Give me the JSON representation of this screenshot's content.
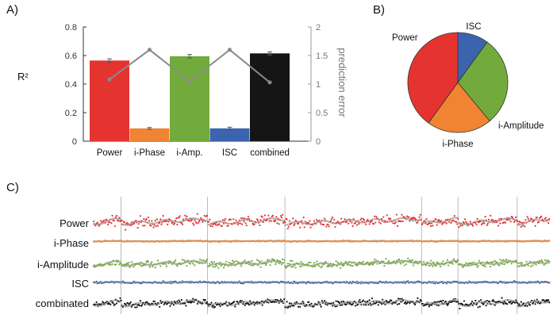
{
  "panels": {
    "a": "A)",
    "b": "B)",
    "c": "C)"
  },
  "chart_data": [
    {
      "type": "bar",
      "panel": "A",
      "categories": [
        "Power",
        "i-Phase",
        "i-Amp.",
        "ISC",
        "combined"
      ],
      "series": [
        {
          "values": [
            0.565,
            0.09,
            0.595,
            0.09,
            0.615
          ],
          "errors": [
            0.012,
            0.006,
            0.012,
            0.008,
            0.011
          ],
          "colors": [
            "#e53430",
            "#f08433",
            "#72ab3b",
            "#3c64ae",
            "#151515"
          ]
        },
        {
          "type": "line",
          "axis": "right",
          "values": [
            1.08,
            1.6,
            1.05,
            1.6,
            1.03
          ],
          "color": "#8a8a8a"
        }
      ],
      "ylabel": "R²",
      "ylim": [
        0,
        0.8
      ],
      "yticks": [
        "0",
        "0.2",
        "0.4",
        "0.6",
        "0.8"
      ],
      "y2label": "prediction error",
      "y2lim": [
        0,
        2
      ],
      "y2ticks": [
        "0",
        "0.5",
        "1",
        "1.5",
        "2"
      ]
    },
    {
      "type": "pie",
      "panel": "B",
      "labels": [
        "ISC",
        "i-Amplitude",
        "i-Phase",
        "Power"
      ],
      "values": [
        10,
        29,
        21,
        40
      ],
      "colors": [
        "#3c64ae",
        "#72ab3b",
        "#f08433",
        "#e53430"
      ]
    },
    {
      "type": "scatter",
      "panel": "C",
      "rows": [
        {
          "label": "Power",
          "color": "#e53430",
          "noise": 0.8,
          "amp": 1.0
        },
        {
          "label": "i-Phase",
          "color": "#f08433",
          "noise": 0.12,
          "amp": 0.08
        },
        {
          "label": "i-Amplitude",
          "color": "#72ab3b",
          "noise": 0.6,
          "amp": 0.75
        },
        {
          "label": "ISC",
          "color": "#3c64ae",
          "noise": 0.18,
          "amp": 0.08
        },
        {
          "label": "combinated",
          "color": "#151515",
          "noise": 0.55,
          "amp": 0.95
        }
      ],
      "segment_boundaries": [
        0.06,
        0.25,
        0.42,
        0.72,
        0.8,
        0.93
      ],
      "n_points": 520
    }
  ]
}
